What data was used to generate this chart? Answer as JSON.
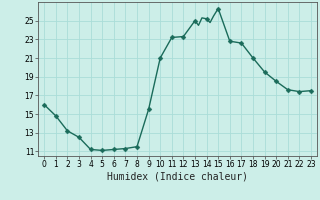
{
  "x": [
    0,
    1,
    2,
    3,
    4,
    5,
    6,
    7,
    8,
    9,
    10,
    11,
    12,
    13,
    13.3,
    13.6,
    14,
    14.3,
    14.6,
    15,
    16,
    17,
    18,
    19,
    20,
    21,
    22,
    23
  ],
  "y": [
    16.0,
    14.8,
    13.2,
    12.5,
    11.2,
    11.1,
    11.2,
    11.3,
    11.5,
    15.5,
    21.0,
    23.2,
    23.3,
    25.0,
    24.5,
    25.3,
    25.2,
    24.8,
    25.5,
    26.3,
    22.8,
    22.6,
    21.0,
    19.5,
    18.5,
    17.6,
    17.4,
    17.5
  ],
  "line_color": "#1a6b5a",
  "marker": "D",
  "marker_x": [
    0,
    1,
    2,
    3,
    4,
    5,
    6,
    7,
    8,
    9,
    10,
    11,
    12,
    13,
    14,
    15,
    16,
    17,
    18,
    19,
    20,
    21,
    22,
    23
  ],
  "marker_y": [
    16.0,
    14.8,
    13.2,
    12.5,
    11.2,
    11.1,
    11.2,
    11.3,
    11.5,
    15.5,
    21.0,
    23.2,
    23.3,
    25.0,
    25.2,
    26.3,
    22.8,
    22.6,
    21.0,
    19.5,
    18.5,
    17.6,
    17.4,
    17.5
  ],
  "marker_size": 2.5,
  "bg_color": "#cceee8",
  "grid_color": "#aaddd8",
  "xlabel": "Humidex (Indice chaleur)",
  "xlim": [
    -0.5,
    23.5
  ],
  "ylim": [
    10.5,
    27.0
  ],
  "yticks": [
    11,
    13,
    15,
    17,
    19,
    21,
    23,
    25
  ],
  "xticks": [
    0,
    1,
    2,
    3,
    4,
    5,
    6,
    7,
    8,
    9,
    10,
    11,
    12,
    13,
    14,
    15,
    16,
    17,
    18,
    19,
    20,
    21,
    22,
    23
  ],
  "tick_fontsize": 5.5,
  "label_fontsize": 7.0,
  "line_width": 1.0
}
